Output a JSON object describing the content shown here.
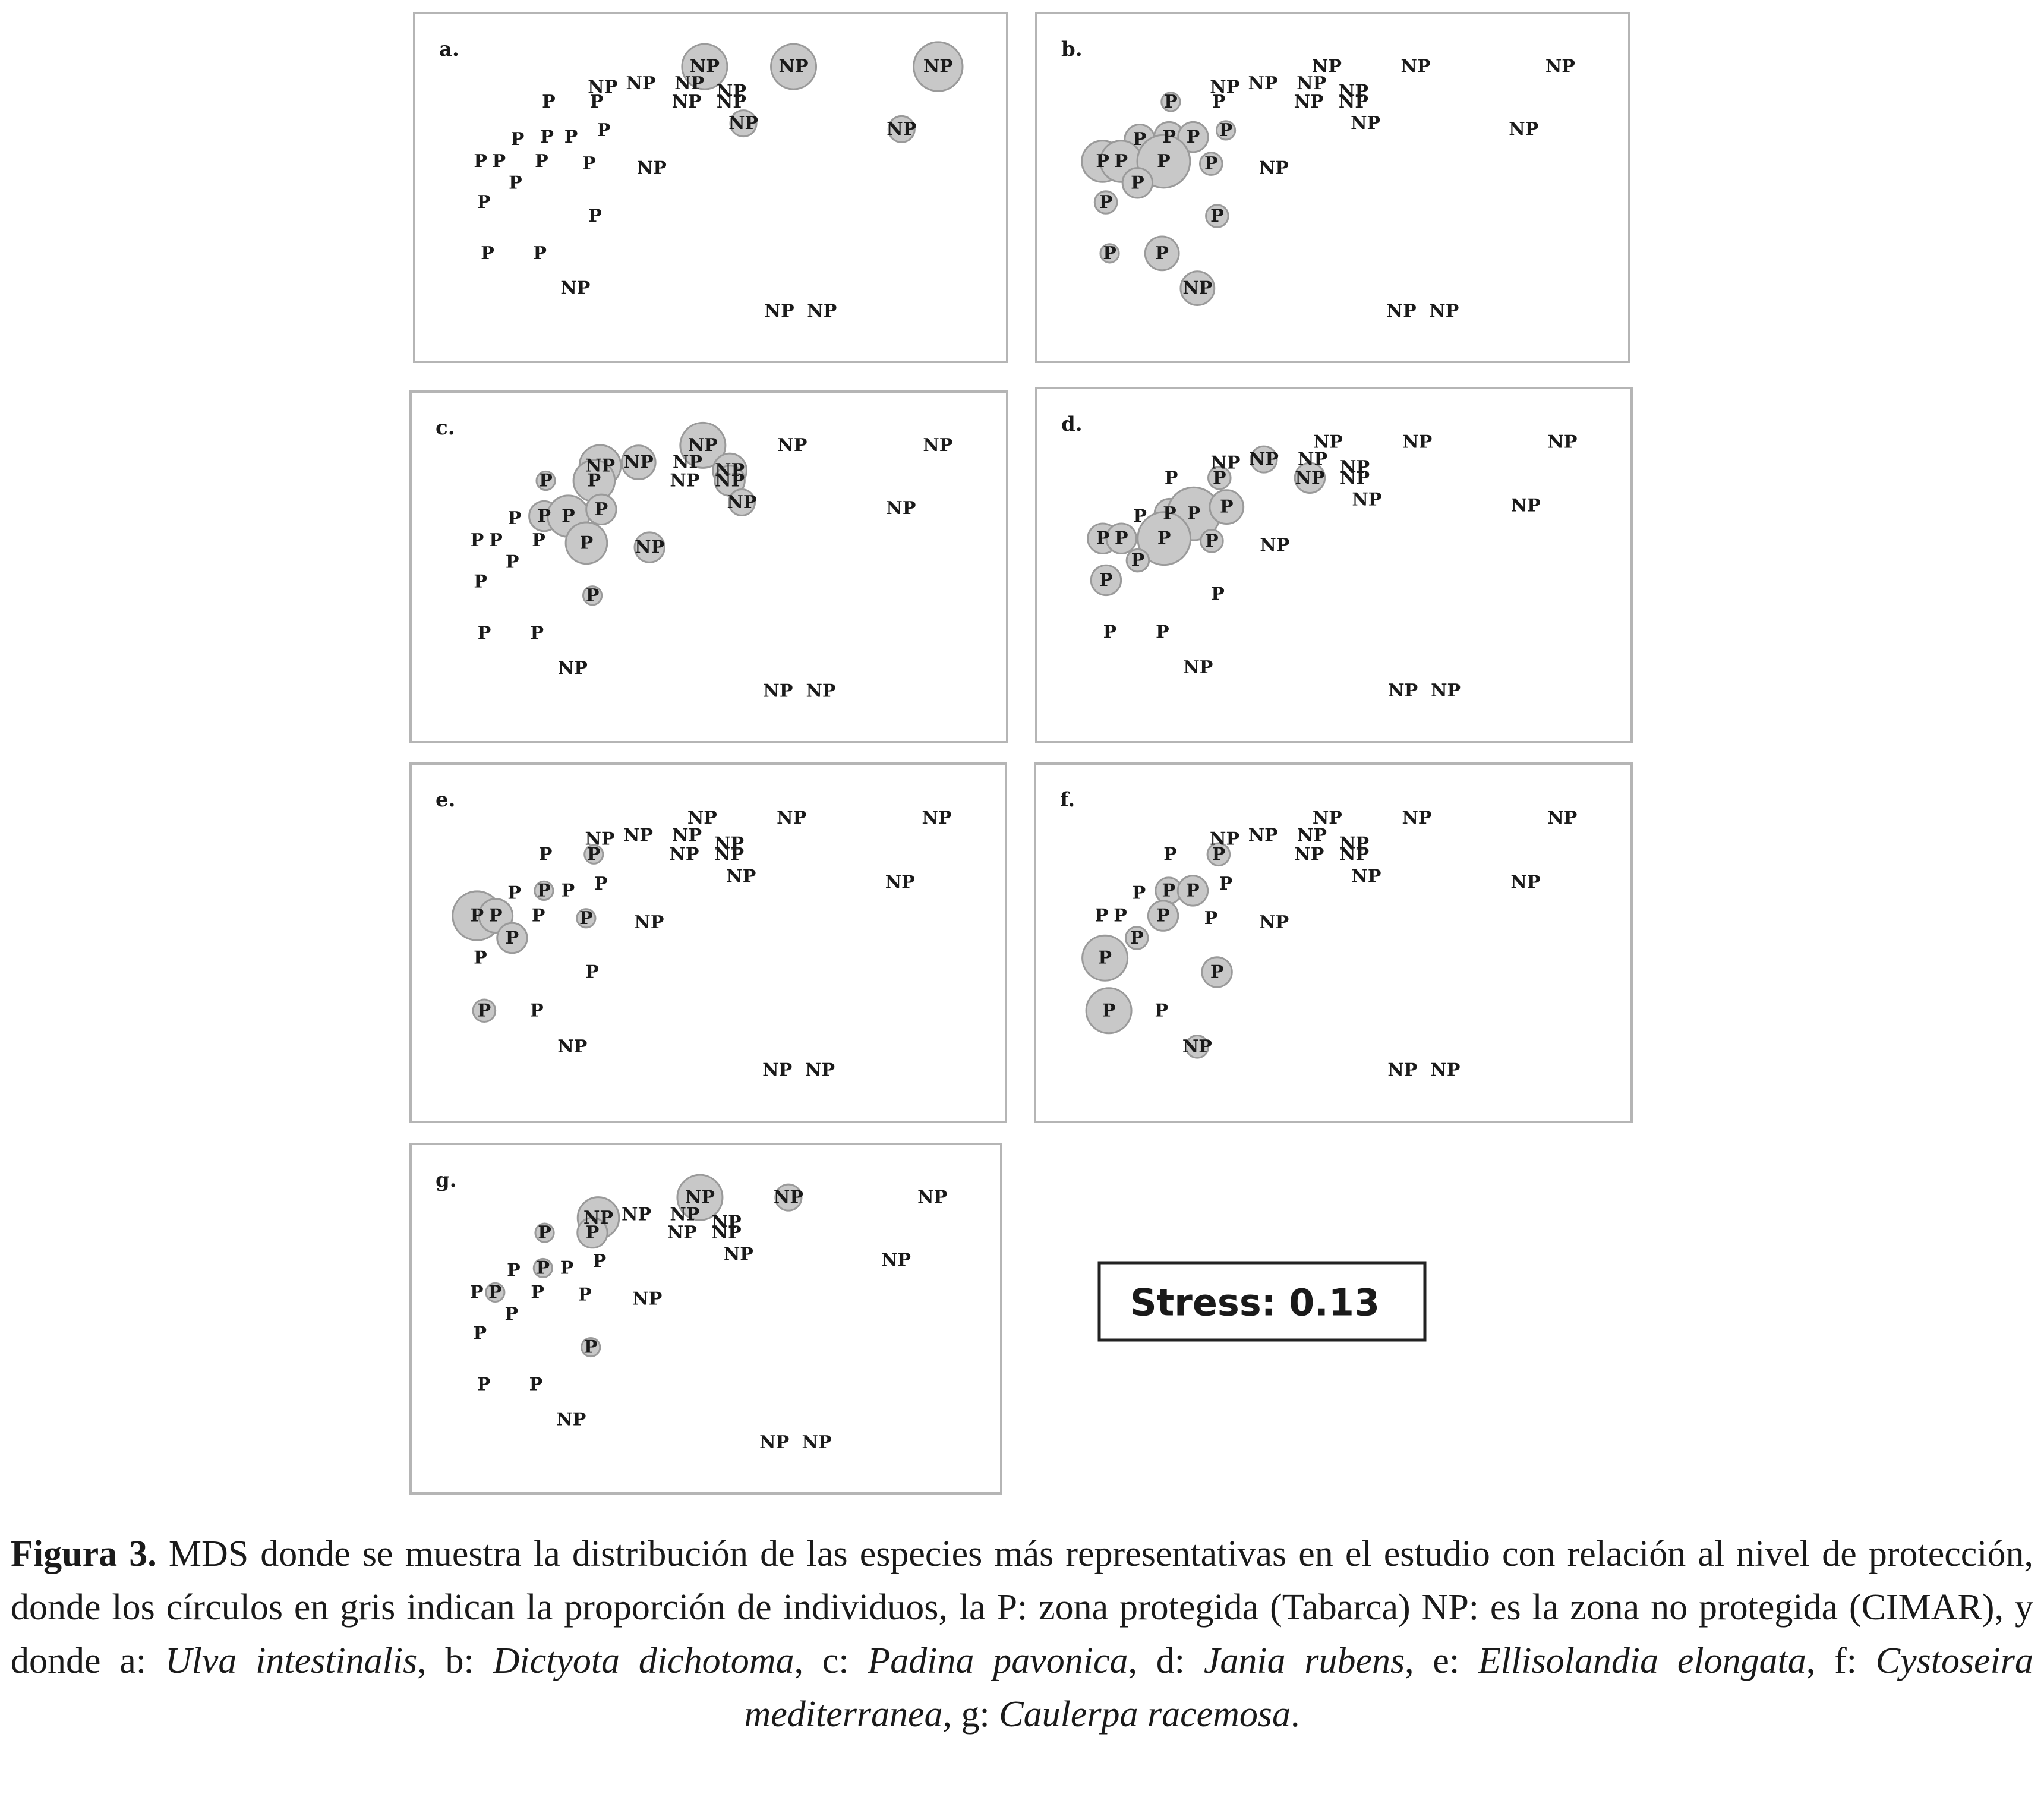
{
  "stress_label": "Stress: 0.13",
  "caption": {
    "figure_label": "Figura 3.",
    "text_main": "MDS donde se muestra la distribución de las especies más representativas en el estudio con relación al nivel de protección, donde los círculos en gris indican la proporción de individuos, la P: zona protegida (Tabarca) NP: es la zona no protegida (CIMAR), y donde a: ",
    "sp_a": "Ulva intestinalis",
    "t_b": ", b: ",
    "sp_b": "Dictyota dichotoma",
    "t_c": ", c: ",
    "sp_c": "Padina pavonica",
    "t_d": ", d: ",
    "sp_d": "Jania rubens",
    "t_e": ", e: ",
    "sp_e": "Ellisolandia elongata",
    "t_f": ", f: ",
    "sp_f": "Cystoseira mediterranea",
    "t_g": ", g: ",
    "sp_g": "Caulerpa racemosa",
    "t_end": "."
  },
  "chart_data": {
    "type": "scatter",
    "group_labels": {
      "protected": "P",
      "unprotected": "NP"
    },
    "bubble_color": "#c8c8c8",
    "points": [
      {
        "group": "NP",
        "x": 0.489,
        "y": 0.902
      },
      {
        "group": "NP",
        "x": 0.652,
        "y": 0.902
      },
      {
        "group": "NP",
        "x": 0.917,
        "y": 0.902
      },
      {
        "group": "NP",
        "x": 0.302,
        "y": 0.835
      },
      {
        "group": "NP",
        "x": 0.372,
        "y": 0.846
      },
      {
        "group": "NP",
        "x": 0.461,
        "y": 0.846
      },
      {
        "group": "NP",
        "x": 0.538,
        "y": 0.82
      },
      {
        "group": "NP",
        "x": 0.456,
        "y": 0.786
      },
      {
        "group": "NP",
        "x": 0.538,
        "y": 0.786
      },
      {
        "group": "NP",
        "x": 0.56,
        "y": 0.715
      },
      {
        "group": "NP",
        "x": 0.85,
        "y": 0.696
      },
      {
        "group": "NP",
        "x": 0.392,
        "y": 0.568
      },
      {
        "group": "NP",
        "x": 0.252,
        "y": 0.172
      },
      {
        "group": "NP",
        "x": 0.626,
        "y": 0.097
      },
      {
        "group": "NP",
        "x": 0.704,
        "y": 0.097
      },
      {
        "group": "P",
        "x": 0.203,
        "y": 0.786
      },
      {
        "group": "P",
        "x": 0.291,
        "y": 0.786
      },
      {
        "group": "P",
        "x": 0.146,
        "y": 0.662
      },
      {
        "group": "P",
        "x": 0.2,
        "y": 0.67
      },
      {
        "group": "P",
        "x": 0.244,
        "y": 0.67
      },
      {
        "group": "P",
        "x": 0.304,
        "y": 0.692
      },
      {
        "group": "P",
        "x": 0.078,
        "y": 0.59
      },
      {
        "group": "P",
        "x": 0.112,
        "y": 0.59
      },
      {
        "group": "P",
        "x": 0.19,
        "y": 0.59
      },
      {
        "group": "P",
        "x": 0.277,
        "y": 0.582
      },
      {
        "group": "P",
        "x": 0.142,
        "y": 0.519
      },
      {
        "group": "P",
        "x": 0.084,
        "y": 0.455
      },
      {
        "group": "P",
        "x": 0.288,
        "y": 0.41
      },
      {
        "group": "P",
        "x": 0.091,
        "y": 0.287
      },
      {
        "group": "P",
        "x": 0.187,
        "y": 0.287
      }
    ],
    "panels": [
      {
        "label": "a.",
        "proportions": [
          1.0,
          1.0,
          1.1,
          0,
          0,
          0,
          0,
          0,
          0,
          0.5,
          0.5,
          0,
          0,
          0,
          0,
          0,
          0,
          0,
          0,
          0,
          0,
          0,
          0,
          0,
          0,
          0,
          0,
          0,
          0,
          0
        ]
      },
      {
        "label": "b.",
        "proportions": [
          0,
          0,
          0,
          0,
          0,
          0,
          0,
          0,
          0,
          0,
          0,
          0,
          0.7,
          0,
          0,
          0.3,
          0,
          0.6,
          0.6,
          0.6,
          0.3,
          0.9,
          0.9,
          1.2,
          0.4,
          0.6,
          0.4,
          0.4,
          0.3,
          0.7
        ]
      },
      {
        "label": "c.",
        "proportions": [
          1.0,
          0,
          0,
          0.9,
          0.7,
          0,
          0.7,
          0,
          0.6,
          0.5,
          0,
          0.6,
          0,
          0,
          0,
          0.3,
          0.9,
          0,
          0.6,
          0.9,
          0.6,
          0,
          0,
          0,
          0.9,
          0,
          0,
          0.3,
          0,
          0
        ]
      },
      {
        "label": "d.",
        "proportions": [
          0,
          0,
          0,
          0,
          0.5,
          0,
          0,
          0.6,
          0,
          0,
          0,
          0,
          0,
          0,
          0,
          0,
          0.4,
          0,
          0.6,
          1.2,
          0.7,
          0.6,
          0.6,
          1.2,
          0.4,
          0.4,
          0.6,
          0,
          0,
          0
        ]
      },
      {
        "label": "e.",
        "proportions": [
          0,
          0,
          0,
          0,
          0,
          0,
          0,
          0,
          0,
          0,
          0,
          0,
          0,
          0,
          0,
          0,
          0.3,
          0,
          0.3,
          0,
          0,
          1.1,
          0.7,
          0,
          0.3,
          0.6,
          0,
          0,
          0.4,
          0
        ]
      },
      {
        "label": "f.",
        "proportions": [
          0,
          0,
          0,
          0,
          0,
          0,
          0,
          0,
          0,
          0,
          0,
          0,
          0.4,
          0,
          0,
          0,
          0.4,
          0,
          0.5,
          0.6,
          0,
          0,
          0,
          0.6,
          0,
          0.4,
          1.0,
          0.6,
          1.0,
          0
        ]
      },
      {
        "label": "g.",
        "proportions": [
          1.0,
          0.5,
          0,
          0.9,
          0,
          0,
          0,
          0,
          0,
          0,
          0,
          0,
          0,
          0,
          0,
          0.3,
          0.6,
          0,
          0.3,
          0,
          0,
          0,
          0.3,
          0,
          0,
          0,
          0,
          0.3,
          0,
          0
        ]
      }
    ]
  }
}
